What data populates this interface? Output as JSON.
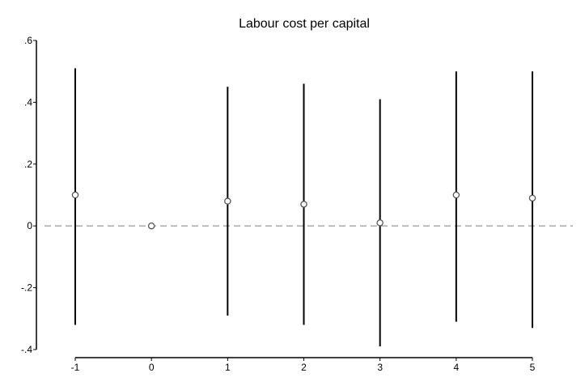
{
  "chart_data": {
    "type": "scatter",
    "title": "Labour cost per capital",
    "xlabel": "",
    "ylabel": "",
    "x_ticks": [
      "-1",
      "0",
      "1",
      "2",
      "3",
      "4",
      "5"
    ],
    "y_ticks": [
      ".6",
      ".4",
      ".2",
      "0",
      "-.2",
      "-.4"
    ],
    "xlim": [
      -1,
      5
    ],
    "ylim": [
      -0.4,
      0.6
    ],
    "reference_line_y": 0,
    "grid": false,
    "legend": "none",
    "colors": {
      "point": "#555555",
      "interval": "#000000",
      "reference": "#8c8c8c",
      "axis": "#000000"
    },
    "points": [
      {
        "x": -1,
        "y": 0.1,
        "lower": -0.32,
        "upper": 0.51
      },
      {
        "x": 0,
        "y": 0.0
      },
      {
        "x": 1,
        "y": 0.08,
        "lower": -0.29,
        "upper": 0.45
      },
      {
        "x": 2,
        "y": 0.07,
        "lower": -0.32,
        "upper": 0.46
      },
      {
        "x": 3,
        "y": 0.01,
        "lower": -0.39,
        "upper": 0.41
      },
      {
        "x": 4,
        "y": 0.1,
        "lower": -0.31,
        "upper": 0.5
      },
      {
        "x": 5,
        "y": 0.09,
        "lower": -0.33,
        "upper": 0.5
      }
    ]
  }
}
